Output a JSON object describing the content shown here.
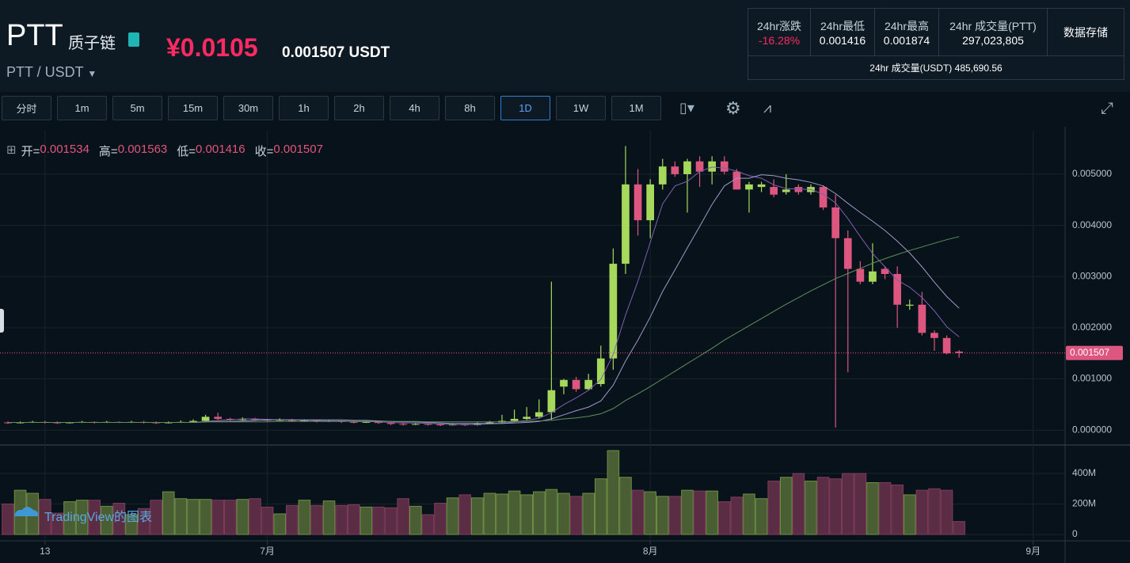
{
  "header": {
    "symbol": "PTT",
    "name": "质子链",
    "price_cny": "¥0.0105",
    "price_usdt": "0.001507 USDT",
    "pair": "PTT / USDT"
  },
  "stats": {
    "labels": [
      "24hr涨跌",
      "24hr最低",
      "24hr最高",
      "24hr 成交量(PTT)"
    ],
    "values": [
      "-16.28%",
      "0.001416",
      "0.001874",
      "297,023,805"
    ],
    "storage": "数据存储",
    "usdt_volume_label": "24hr 成交量(USDT)",
    "usdt_volume": "485,690.56"
  },
  "toolbar": {
    "intervals": [
      "分时",
      "1m",
      "5m",
      "15m",
      "30m",
      "1h",
      "2h",
      "4h",
      "8h",
      "1D",
      "1W",
      "1M"
    ],
    "active": 9
  },
  "chart_data": {
    "type": "candlestick",
    "watermark": "TradingView的图表",
    "ohlc_labels": [
      "开=",
      "高=",
      "低=",
      "收="
    ],
    "up_color": "#a6d95b",
    "down_color": "#dc5680",
    "xlim": [
      -0.64,
      85.58
    ],
    "xticks": [
      {
        "value": 3,
        "label": "13"
      },
      {
        "value": 21,
        "label": "7月"
      },
      {
        "value": 52,
        "label": "8月"
      },
      {
        "value": 83,
        "label": "9月"
      }
    ],
    "ylim": [
      -0.00026,
      0.00585
    ],
    "yticks": [
      {
        "value": 0,
        "label": "0.000000"
      },
      {
        "value": 0.001,
        "label": "0.001000"
      },
      {
        "value": 0.002,
        "label": "0.002000"
      },
      {
        "value": 0.003,
        "label": "0.003000"
      },
      {
        "value": 0.004,
        "label": "0.004000"
      },
      {
        "value": 0.005,
        "label": "0.005000"
      }
    ],
    "grid": true,
    "open": [
      0.00015,
      0.00014,
      0.00015,
      0.00016,
      0.00015,
      0.00014,
      0.00015,
      0.00016,
      0.00015,
      0.00016,
      0.00015,
      0.00016,
      0.00015,
      0.00014,
      0.00015,
      0.00016,
      0.00018,
      0.00026,
      0.00022,
      0.0002,
      0.00022,
      0.0002,
      0.00019,
      0.0002,
      0.00018,
      0.00019,
      0.00017,
      0.00018,
      0.00016,
      0.00015,
      0.00016,
      0.00014,
      0.00012,
      0.00011,
      0.00012,
      0.00011,
      0.0001,
      0.00011,
      0.0001,
      0.00013,
      0.00015,
      0.00018,
      0.00022,
      0.00026,
      0.00035,
      0.00085,
      0.00098,
      0.0008,
      0.0009,
      0.0014,
      0.00325,
      0.0048,
      0.0041,
      0.0048,
      0.00515,
      0.005,
      0.00525,
      0.00505,
      0.00525,
      0.00505,
      0.0047,
      0.00475,
      0.00475,
      0.00465,
      0.00475,
      0.00465,
      0.00475,
      0.00435,
      0.00375,
      0.00315,
      0.0029,
      0.00315,
      0.00305,
      0.00243,
      0.00245,
      0.0019,
      0.0018,
      0.001534
    ],
    "high": [
      0.00017,
      0.00017,
      0.00018,
      0.00018,
      0.00017,
      0.00016,
      0.00018,
      0.00017,
      0.00018,
      0.00017,
      0.00018,
      0.00018,
      0.00017,
      0.00017,
      0.00019,
      0.00021,
      0.0003,
      0.00034,
      0.00024,
      0.00025,
      0.00024,
      0.00022,
      0.00023,
      0.00022,
      0.00021,
      0.0002,
      0.0002,
      0.00019,
      0.00018,
      0.00018,
      0.00017,
      0.00015,
      0.00014,
      0.00014,
      0.00013,
      0.00013,
      0.00013,
      0.00012,
      0.00015,
      0.00018,
      0.0003,
      0.0004,
      0.00045,
      0.0006,
      0.0029,
      0.001,
      0.00104,
      0.0011,
      0.00165,
      0.00355,
      0.00555,
      0.0051,
      0.0049,
      0.0053,
      0.00525,
      0.0053,
      0.00535,
      0.00535,
      0.00535,
      0.0051,
      0.00485,
      0.00485,
      0.0049,
      0.005,
      0.0048,
      0.0048,
      0.00478,
      0.0046,
      0.0039,
      0.0033,
      0.00365,
      0.0032,
      0.0032,
      0.00255,
      0.0027,
      0.00195,
      0.00185,
      0.001563
    ],
    "low": [
      0.00012,
      0.00013,
      0.00014,
      0.00013,
      0.00012,
      0.00013,
      0.00014,
      0.00013,
      0.00014,
      0.00014,
      0.00014,
      0.00013,
      0.00012,
      0.00013,
      0.00014,
      0.00015,
      0.00017,
      0.0002,
      0.00018,
      0.00019,
      0.00018,
      0.00017,
      0.00018,
      0.00016,
      0.00016,
      0.00015,
      0.00016,
      0.00014,
      0.00013,
      0.00014,
      0.00012,
      0.0001,
      9e-05,
      0.0001,
      9e-05,
      8e-05,
      9e-05,
      8e-05,
      9e-05,
      0.00012,
      0.00014,
      0.00016,
      0.0002,
      0.00022,
      0.0002,
      0.0007,
      0.00075,
      0.00078,
      0.00085,
      0.00118,
      0.00305,
      0.0038,
      0.00375,
      0.0047,
      0.00495,
      0.00425,
      0.00475,
      0.0048,
      0.005,
      0.0047,
      0.00425,
      0.00465,
      0.00455,
      0.0046,
      0.0046,
      0.0046,
      0.0043,
      5e-05,
      0.00113,
      0.00285,
      0.00285,
      0.00295,
      0.002,
      0.00235,
      0.00185,
      0.00155,
      0.00148,
      0.001416
    ],
    "close": [
      0.00014,
      0.00015,
      0.00016,
      0.00015,
      0.00014,
      0.00015,
      0.00016,
      0.00015,
      0.00016,
      0.00015,
      0.00016,
      0.00015,
      0.00014,
      0.00015,
      0.00016,
      0.00018,
      0.00026,
      0.00022,
      0.0002,
      0.00022,
      0.0002,
      0.00019,
      0.0002,
      0.00018,
      0.00019,
      0.00017,
      0.00018,
      0.00016,
      0.00015,
      0.00016,
      0.00014,
      0.00012,
      0.00011,
      0.00012,
      0.00011,
      0.0001,
      0.00011,
      0.0001,
      0.00013,
      0.00015,
      0.00018,
      0.00022,
      0.00026,
      0.00035,
      0.00078,
      0.00098,
      0.0008,
      0.00098,
      0.0014,
      0.00325,
      0.0048,
      0.0041,
      0.0048,
      0.00515,
      0.005,
      0.00525,
      0.00505,
      0.00525,
      0.00505,
      0.0047,
      0.0048,
      0.0048,
      0.0046,
      0.0047,
      0.00465,
      0.00475,
      0.00435,
      0.00375,
      0.00315,
      0.0029,
      0.0031,
      0.00305,
      0.00245,
      0.00245,
      0.0019,
      0.0018,
      0.0015,
      0.001507
    ],
    "series": [
      {
        "color": "#7d5fb0",
        "values": [
          0.00015,
          0.00015,
          0.00015,
          0.00015,
          0.00015,
          0.00015,
          0.00015,
          0.00015,
          0.00015,
          0.00015,
          0.00015,
          0.00015,
          0.00015,
          0.00015,
          0.00015,
          0.00015,
          0.00017,
          0.00019,
          0.0002,
          0.00022,
          0.00022,
          0.00021,
          0.0002,
          0.0002,
          0.00019,
          0.00019,
          0.00018,
          0.00018,
          0.00017,
          0.00017,
          0.00016,
          0.00015,
          0.00014,
          0.00014,
          0.00013,
          0.00012,
          0.00011,
          0.00011,
          0.00011,
          0.00012,
          0.00013,
          0.00016,
          0.00019,
          0.00023,
          0.00034,
          0.0005,
          0.00063,
          0.00078,
          0.00099,
          0.00148,
          0.00225,
          0.00291,
          0.00367,
          0.00442,
          0.00477,
          0.00486,
          0.00505,
          0.00514,
          0.00512,
          0.00506,
          0.00497,
          0.00492,
          0.00479,
          0.00472,
          0.00471,
          0.0047,
          0.00461,
          0.00444,
          0.00413,
          0.00378,
          0.00345,
          0.00319,
          0.00293,
          0.00279,
          0.00259,
          0.00233,
          0.00202,
          0.00182
        ]
      },
      {
        "color": "#a09ac8",
        "values": [
          0.00015,
          0.00015,
          0.00015,
          0.00015,
          0.00015,
          0.00015,
          0.00015,
          0.00015,
          0.00015,
          0.00015,
          0.00015,
          0.00015,
          0.00015,
          0.00015,
          0.00015,
          0.00015,
          0.00016,
          0.00017,
          0.00017,
          0.00018,
          0.00019,
          0.0002,
          0.0002,
          0.0002,
          0.0002,
          0.0002,
          0.0002,
          0.0002,
          0.00019,
          0.00019,
          0.00018,
          0.00017,
          0.00016,
          0.00016,
          0.00015,
          0.00014,
          0.00013,
          0.00013,
          0.00013,
          0.00013,
          0.00013,
          0.00014,
          0.00015,
          0.00017,
          0.00022,
          0.0003,
          0.00038,
          0.00045,
          0.00057,
          0.00088,
          0.00135,
          0.00176,
          0.00221,
          0.00271,
          0.00313,
          0.00356,
          0.00398,
          0.00441,
          0.00477,
          0.00492,
          0.00492,
          0.00499,
          0.00497,
          0.00492,
          0.00489,
          0.00484,
          0.00477,
          0.00462,
          0.00443,
          0.00425,
          0.00408,
          0.0039,
          0.00369,
          0.00346,
          0.00319,
          0.00289,
          0.00261,
          0.00238
        ]
      },
      {
        "color": "#5f8f5c",
        "values": [
          0.00015,
          0.00015,
          0.00015,
          0.00015,
          0.00015,
          0.00015,
          0.00015,
          0.00015,
          0.00015,
          0.00015,
          0.00015,
          0.00015,
          0.00015,
          0.00015,
          0.00015,
          0.00015,
          0.00016,
          0.00016,
          0.00016,
          0.00016,
          0.00016,
          0.00016,
          0.00017,
          0.00017,
          0.00017,
          0.00017,
          0.00017,
          0.00017,
          0.00017,
          0.00017,
          0.00017,
          0.00017,
          0.00017,
          0.00017,
          0.00016,
          0.00016,
          0.00016,
          0.00016,
          0.00016,
          0.00016,
          0.00016,
          0.00017,
          0.00017,
          0.00018,
          0.00019,
          0.00022,
          0.00024,
          0.00027,
          0.00032,
          0.00042,
          0.00058,
          0.00071,
          0.00085,
          0.001,
          0.00115,
          0.0013,
          0.00145,
          0.0016,
          0.00176,
          0.0019,
          0.00204,
          0.00218,
          0.00232,
          0.00246,
          0.00259,
          0.00272,
          0.00284,
          0.00296,
          0.00306,
          0.00316,
          0.00326,
          0.00335,
          0.00343,
          0.00351,
          0.00358,
          0.00365,
          0.00372,
          0.00378
        ]
      }
    ],
    "volume": {
      "ylim": [
        -41500000,
        571000000
      ],
      "yticks": [
        0,
        {
          "value": 200000000,
          "label": "200M"
        },
        {
          "value": 400000000,
          "label": "400M"
        }
      ],
      "up_color": "#4a5e34",
      "down_color": "#5b2d44",
      "values": [
        200000000,
        290000000,
        270000000,
        230000000,
        140000000,
        215000000,
        225000000,
        225000000,
        185000000,
        205000000,
        130000000,
        170000000,
        225000000,
        280000000,
        235000000,
        230000000,
        230000000,
        225000000,
        225000000,
        230000000,
        235000000,
        180000000,
        135000000,
        190000000,
        225000000,
        190000000,
        220000000,
        190000000,
        195000000,
        180000000,
        180000000,
        175000000,
        235000000,
        185000000,
        130000000,
        205000000,
        240000000,
        260000000,
        240000000,
        270000000,
        265000000,
        285000000,
        260000000,
        280000000,
        295000000,
        270000000,
        250000000,
        270000000,
        365000000,
        550000000,
        375000000,
        290000000,
        280000000,
        250000000,
        250000000,
        290000000,
        285000000,
        285000000,
        215000000,
        245000000,
        265000000,
        235000000,
        350000000,
        375000000,
        400000000,
        350000000,
        375000000,
        365000000,
        400000000,
        400000000,
        340000000,
        340000000,
        325000000,
        260000000,
        290000000,
        300000000,
        290000000,
        85000000
      ]
    }
  }
}
